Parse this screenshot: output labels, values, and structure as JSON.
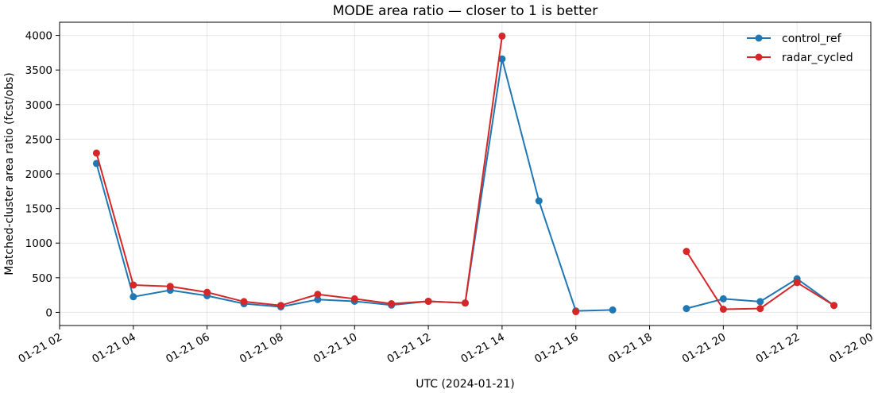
{
  "chart_data": {
    "type": "line",
    "title": "MODE area ratio — closer to 1 is better",
    "xlabel": "UTC (2024-01-21)",
    "ylabel": "Matched-cluster area ratio (fcst/obs)",
    "x_ticks": [
      {
        "hour": 2,
        "label": "01-21 02"
      },
      {
        "hour": 4,
        "label": "01-21 04"
      },
      {
        "hour": 6,
        "label": "01-21 06"
      },
      {
        "hour": 8,
        "label": "01-21 08"
      },
      {
        "hour": 10,
        "label": "01-21 10"
      },
      {
        "hour": 12,
        "label": "01-21 12"
      },
      {
        "hour": 14,
        "label": "01-21 14"
      },
      {
        "hour": 16,
        "label": "01-21 16"
      },
      {
        "hour": 18,
        "label": "01-21 18"
      },
      {
        "hour": 20,
        "label": "01-21 20"
      },
      {
        "hour": 22,
        "label": "01-21 22"
      },
      {
        "hour": 24,
        "label": "01-22 00"
      }
    ],
    "y_ticks": [
      0,
      500,
      1000,
      1500,
      2000,
      2500,
      3000,
      3500,
      4000
    ],
    "xlim": [
      2,
      24
    ],
    "ylim": [
      -190,
      4190
    ],
    "grid": true,
    "legend_position": "top-right",
    "x_hours": [
      3,
      4,
      5,
      6,
      7,
      8,
      9,
      10,
      11,
      12,
      13,
      14,
      15,
      16,
      17,
      18,
      19,
      20,
      21,
      22,
      23
    ],
    "series": [
      {
        "name": "control_ref",
        "color": "#1f77b4",
        "values": [
          2150,
          225,
          320,
          240,
          125,
          80,
          185,
          160,
          105,
          160,
          135,
          3660,
          1610,
          20,
          35,
          null,
          55,
          195,
          155,
          485,
          100
        ]
      },
      {
        "name": "radar_cycled",
        "color": "#d62728",
        "values": [
          2300,
          395,
          375,
          290,
          155,
          100,
          260,
          195,
          125,
          160,
          135,
          3990,
          null,
          10,
          null,
          null,
          880,
          45,
          55,
          430,
          100
        ]
      }
    ]
  }
}
